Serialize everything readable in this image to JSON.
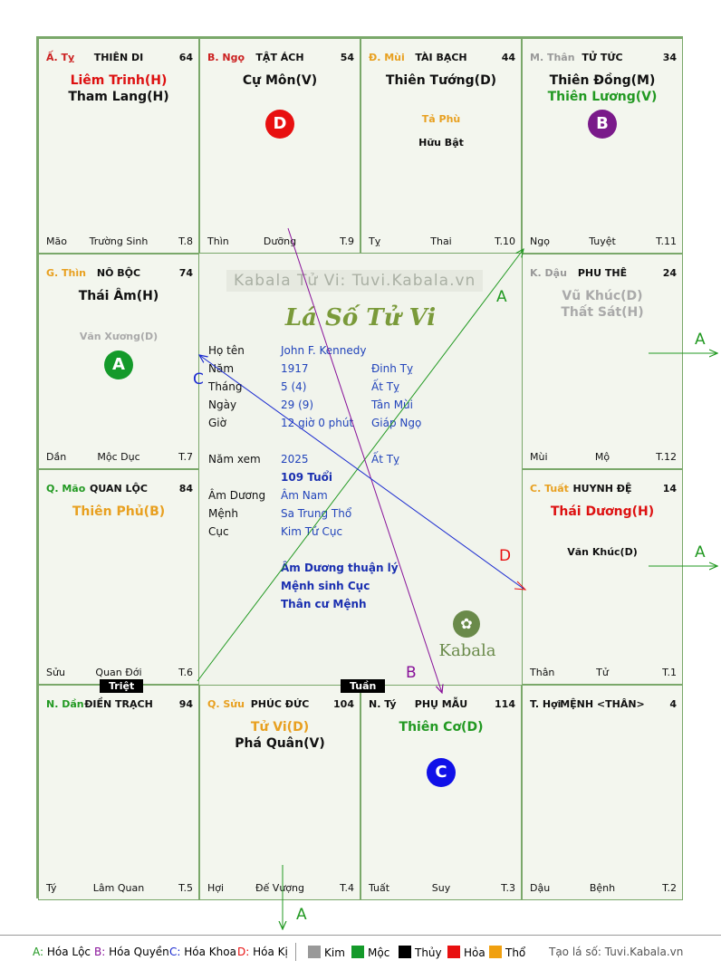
{
  "palaces": [
    {
      "branch": "Ấ. Tỵ",
      "branch_color": "#cc2222",
      "name": "THIÊN DI",
      "num": "64",
      "majors": [
        {
          "t": "Liêm Trinh(H)",
          "c": "#dd1111"
        },
        {
          "t": "Tham Lang(H)",
          "c": "#111111"
        }
      ],
      "minors": [],
      "foot_l": "Mão",
      "foot_m": "Trường Sinh",
      "foot_r": "T.8"
    },
    {
      "branch": "B. Ngọ",
      "branch_color": "#cc2222",
      "name": "TẬT ÁCH",
      "num": "54",
      "majors": [
        {
          "t": "Cự Môn(V)",
          "c": "#111111"
        }
      ],
      "minors": [],
      "foot_l": "Thìn",
      "foot_m": "Dưỡng",
      "foot_r": "T.9"
    },
    {
      "branch": "Đ. Mùi",
      "branch_color": "#e8a020",
      "name": "TÀI BẠCH",
      "num": "44",
      "majors": [
        {
          "t": "Thiên Tướng(D)",
          "c": "#111111"
        }
      ],
      "minors": [
        {
          "t": "Tả Phù",
          "c": "#e8a020"
        },
        {
          "t": "Hữu Bật",
          "c": "#111111"
        }
      ],
      "foot_l": "Tỵ",
      "foot_m": "Thai",
      "foot_r": "T.10"
    },
    {
      "branch": "M. Thân",
      "branch_color": "#999999",
      "name": "TỬ TỨC",
      "num": "34",
      "majors": [
        {
          "t": "Thiên Đồng(M)",
          "c": "#111111"
        },
        {
          "t": "Thiên Lương(V)",
          "c": "#229922"
        }
      ],
      "minors": [],
      "foot_l": "Ngọ",
      "foot_m": "Tuyệt",
      "foot_r": "T.11"
    },
    {
      "branch": "G. Thìn",
      "branch_color": "#e8a020",
      "name": "NÔ BỘC",
      "num": "74",
      "majors": [
        {
          "t": "Thái Âm(H)",
          "c": "#111111"
        }
      ],
      "minors": [
        {
          "t": "Văn Xương(D)",
          "c": "#aaaaaa"
        }
      ],
      "foot_l": "Dần",
      "foot_m": "Mộc Dục",
      "foot_r": "T.7"
    },
    {
      "branch": "K. Dậu",
      "branch_color": "#999999",
      "name": "PHU THÊ",
      "num": "24",
      "majors": [
        {
          "t": "Vũ Khúc(D)",
          "c": "#aaaaaa"
        },
        {
          "t": "Thất Sát(H)",
          "c": "#aaaaaa"
        }
      ],
      "minors": [],
      "foot_l": "Mùi",
      "foot_m": "Mộ",
      "foot_r": "T.12"
    },
    {
      "branch": "Q. Mão",
      "branch_color": "#229922",
      "name": "QUAN LỘC",
      "num": "84",
      "majors": [
        {
          "t": "Thiên Phủ(B)",
          "c": "#e8a020"
        }
      ],
      "minors": [],
      "foot_l": "Sửu",
      "foot_m": "Quan Đới",
      "foot_r": "T.6"
    },
    {
      "branch": "C. Tuất",
      "branch_color": "#e8a020",
      "name": "HUYNH ĐỆ",
      "num": "14",
      "majors": [
        {
          "t": "Thái Dương(H)",
          "c": "#dd1111"
        }
      ],
      "minors": [
        {
          "t": "Văn Khúc(D)",
          "c": "#111111"
        }
      ],
      "foot_l": "Thân",
      "foot_m": "Tử",
      "foot_r": "T.1"
    },
    {
      "branch": "N. Dần",
      "branch_color": "#229922",
      "name": "ĐIỀN TRẠCH",
      "num": "94",
      "majors": [],
      "minors": [],
      "foot_l": "Tý",
      "foot_m": "Lâm Quan",
      "foot_r": "T.5"
    },
    {
      "branch": "Q. Sửu",
      "branch_color": "#e8a020",
      "name": "PHÚC ĐỨC",
      "num": "104",
      "majors": [
        {
          "t": "Tử Vi(D)",
          "c": "#e8a020"
        },
        {
          "t": "Phá Quân(V)",
          "c": "#111111"
        }
      ],
      "minors": [],
      "foot_l": "Hợi",
      "foot_m": "Đế Vượng",
      "foot_r": "T.4"
    },
    {
      "branch": "N. Tý",
      "branch_color": "#111111",
      "name": "PHỤ MẪU",
      "num": "114",
      "majors": [
        {
          "t": "Thiên Cơ(D)",
          "c": "#229922"
        }
      ],
      "minors": [],
      "foot_l": "Tuất",
      "foot_m": "Suy",
      "foot_r": "T.3"
    },
    {
      "branch": "T. Hợi",
      "branch_color": "#111111",
      "name": "MỆNH <THÂN>",
      "num": "4",
      "majors": [],
      "minors": [],
      "foot_l": "Dậu",
      "foot_m": "Bệnh",
      "foot_r": "T.2"
    }
  ],
  "circles": [
    {
      "label": "D",
      "color": "#e81010"
    },
    {
      "label": "B",
      "color": "#7a1a8a"
    },
    {
      "label": "A",
      "color": "#149a2a"
    },
    {
      "label": "C",
      "color": "#1010e8"
    }
  ],
  "tags": {
    "triet": "Triệt",
    "tuan": "Tuần"
  },
  "center": {
    "watermark": "Kabala Tử Vi: Tuvi.Kabala.vn",
    "title": "Lá Số Tử Vi",
    "rows": [
      {
        "k": "Họ tên",
        "v": "John F. Kennedy",
        "v2": ""
      },
      {
        "k": "Năm",
        "v": "1917",
        "v2": "Đinh Tỵ"
      },
      {
        "k": "Tháng",
        "v": "5  (4)",
        "v2": "Ất Tỵ"
      },
      {
        "k": "Ngày",
        "v": "29  (9)",
        "v2": "Tân Mùi"
      },
      {
        "k": "Giờ",
        "v": "12 giờ 0 phút",
        "v2": "Giáp Ngọ"
      },
      {
        "k": "Năm xem",
        "v": "2025",
        "v2": "Ất Tỵ"
      },
      {
        "k": "",
        "v": "109 Tuổi",
        "v2": ""
      },
      {
        "k": "Âm Dương",
        "v": "Âm Nam",
        "v2": ""
      },
      {
        "k": "Mệnh",
        "v": "Sa Trung Thổ",
        "v2": ""
      },
      {
        "k": "Cục",
        "v": "Kim Tứ Cục",
        "v2": ""
      }
    ],
    "notes": [
      "Âm Dương thuận lý",
      "Mệnh sinh Cục",
      "Thân cư Mệnh"
    ],
    "logo_text": "Kabala"
  },
  "arrow_labels": {
    "a": "A",
    "b": "B",
    "c": "C",
    "d": "D"
  },
  "arrow_colors": {
    "a": "#229922",
    "b": "#881199",
    "c": "#1a2ad0",
    "d": "#e81010"
  },
  "legend": {
    "hoa_loc": "Hóa Lộc",
    "hoa_quyen": "Hóa Quyền",
    "hoa_khoa": "Hóa Khoa",
    "hoa_ki": "Hóa Kị",
    "kim": "Kim",
    "moc": "Mộc",
    "thuy": "Thủy",
    "hoa": "Hỏa",
    "tho": "Thổ",
    "kim_color": "#999999",
    "moc_color": "#149a2a",
    "thuy_color": "#000000",
    "hoa_color": "#e81010",
    "tho_color": "#f0a010",
    "site": "Tạo lá số: Tuvi.Kabala.vn"
  }
}
